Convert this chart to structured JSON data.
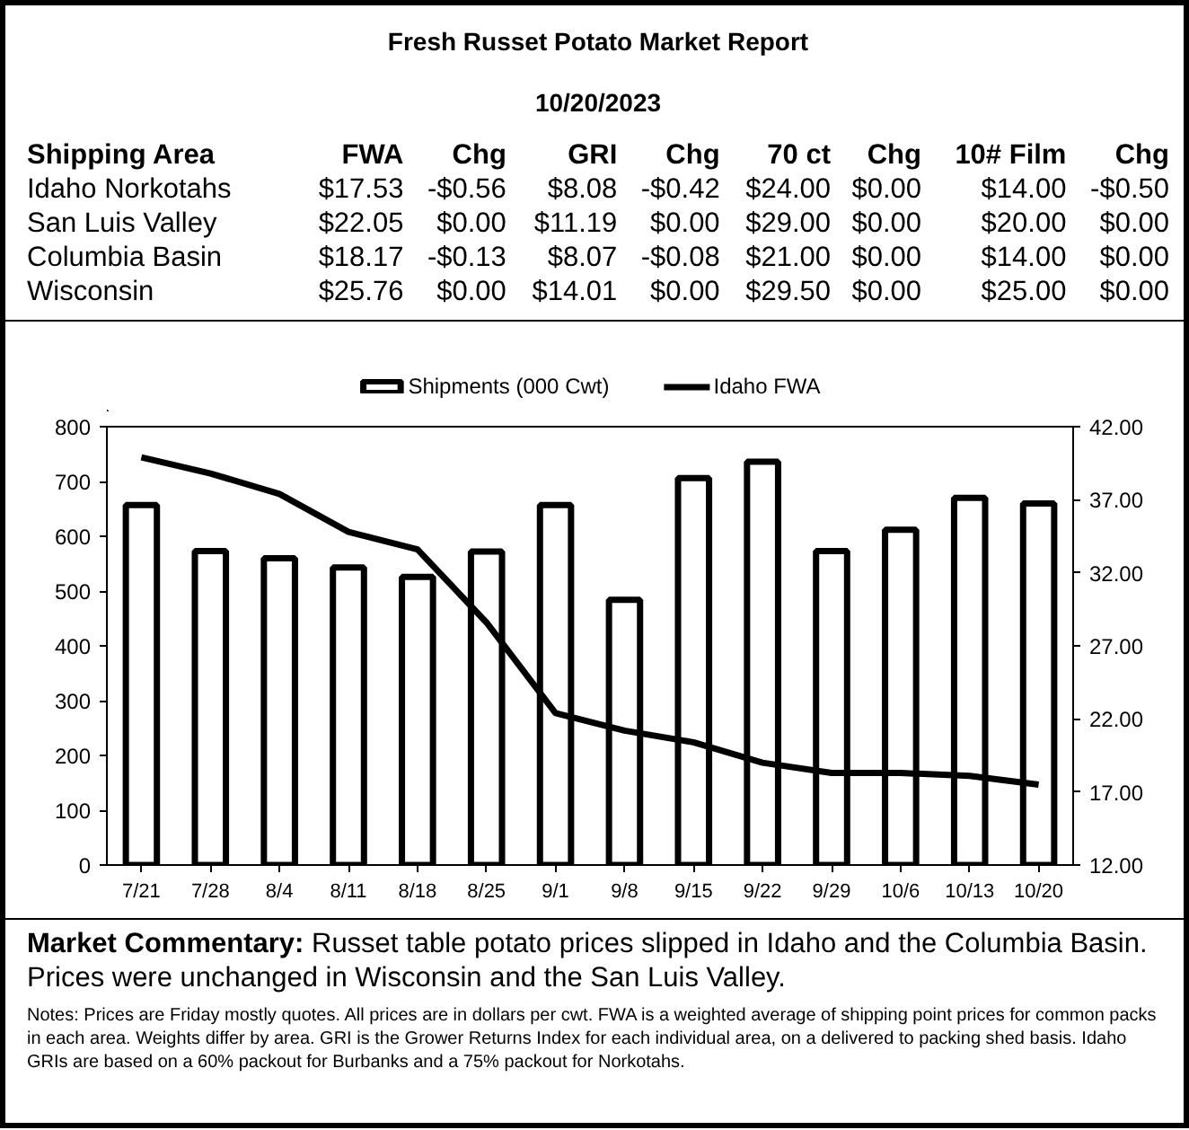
{
  "chart_data": {
    "type": "bar",
    "title": "Fresh Russet Potato Market Report",
    "subtitle": "10/20/2023",
    "categories": [
      "7/21",
      "7/28",
      "8/4",
      "8/11",
      "8/18",
      "8/25",
      "9/1",
      "9/8",
      "9/15",
      "9/22",
      "9/29",
      "10/6",
      "10/13",
      "10/20"
    ],
    "series": [
      {
        "name": "Shipments (000 Cwt)",
        "color": "#ffffff",
        "values": [
          657,
          573,
          560,
          543,
          526,
          572,
          657,
          484,
          706,
          736,
          573,
          612,
          670,
          660
        ]
      },
      {
        "name": "Idaho FWA",
        "type": "line",
        "axis": "y2",
        "color": "#000000",
        "values": [
          39.9,
          38.8,
          37.4,
          34.8,
          33.6,
          28.6,
          22.4,
          21.2,
          20.4,
          19.0,
          18.3,
          18.3,
          18.1,
          17.5
        ]
      }
    ],
    "ylim": [
      0,
      800
    ],
    "yticks": [
      0,
      100,
      200,
      300,
      400,
      500,
      600,
      700,
      800
    ],
    "y2lim": [
      12,
      42
    ],
    "y2ticks": [
      {
        "value": 12,
        "label": "12.00"
      },
      {
        "value": 17,
        "label": "17.00"
      },
      {
        "value": 22,
        "label": "22.00"
      },
      {
        "value": 27,
        "label": "27.00"
      },
      {
        "value": 32,
        "label": "32.00"
      },
      {
        "value": 37,
        "label": "37.00"
      },
      {
        "value": 42,
        "label": "42.00"
      }
    ],
    "grid": false,
    "legend": "top",
    "annotations": [
      "Shipping Area\tFWA\tChg\tGRI\tChg\t70 ct\tChg\t10# Film\tChg",
      "Idaho Norkotahs\t$17.53\t-$0.56\t$8.08\t-$0.42\t$24.00\t$0.00\t$14.00\t-$0.50",
      "San Luis Valley\t$22.05\t$0.00\t$11.19\t$0.00\t$29.00\t$0.00\t$20.00\t$0.00",
      "Columbia Basin\t$18.17\t-$0.13\t$8.07\t-$0.08\t$21.00\t$0.00\t$14.00\t$0.00",
      "Wisconsin\t$25.76\t$0.00\t$14.01\t$0.00\t$29.50\t$0.00\t$25.00\t$0.00",
      "Market Commentary: Russet table potato prices slipped in Idaho and the Columbia Basin. Prices were unchanged in Wisconsin and the San Luis Valley.",
      "Notes: Prices are Friday mostly quotes. All prices are in dollars per cwt. FWA is a weighted average of shipping point prices for  common packs in each area. Weights differ by area. GRI is the Grower Returns Index for each individual area, on a delivered to packing shed basis. Idaho GRIs are based on a 60% packout for Burbanks and a 75% packout for Norkotahs."
    ]
  }
}
